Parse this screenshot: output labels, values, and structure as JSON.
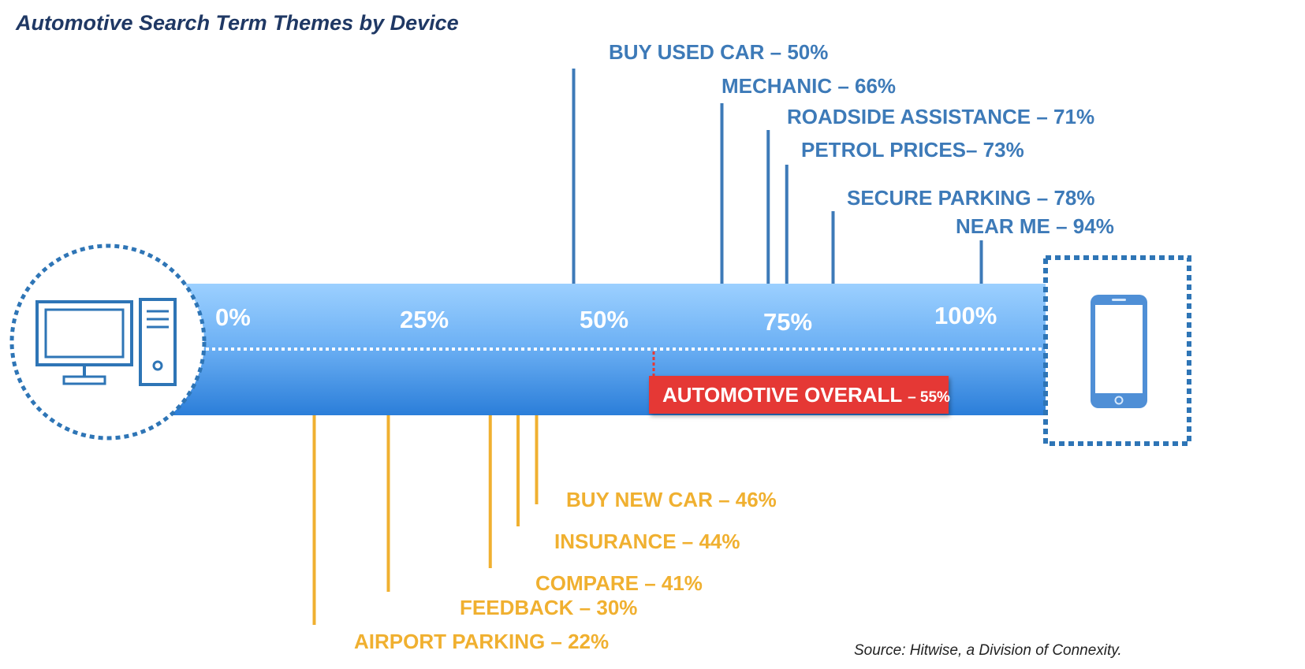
{
  "title": "Automotive Search Term Themes by Device",
  "source": "Source: Hitwise, a Division of Connexity.",
  "colors": {
    "mobile_terms": "#3d7ab8",
    "desktop_terms": "#f0b030",
    "overall_box": "#e53935",
    "bar_light": "#9cd0ff",
    "bar_dark": "#2b7ed9",
    "device_icon": "#2e75b6"
  },
  "icons": {
    "desktop": "desktop-computer-icon",
    "mobile": "smartphone-icon"
  },
  "chart_data": {
    "type": "timeline-axis",
    "title": "Automotive Search Term Themes by Device",
    "axis": {
      "label_positions": [
        0,
        25,
        50,
        75,
        100
      ],
      "tick_labels": [
        "0%",
        "25%",
        "50%",
        "75%",
        "100%"
      ],
      "range": [
        0,
        100
      ],
      "left_end": "desktop",
      "right_end": "mobile"
    },
    "overall": {
      "label": "AUTOMOTIVE OVERALL",
      "value_label": "– 55%",
      "value": 55
    },
    "series": [
      {
        "group": "mobile-leaning",
        "placement": "above",
        "points": [
          {
            "label": "BUY USED CAR – 50%",
            "value": 50
          },
          {
            "label": "MECHANIC – 66%",
            "value": 66
          },
          {
            "label": "ROADSIDE ASSISTANCE – 71%",
            "value": 71
          },
          {
            "label": "PETROL PRICES– 73%",
            "value": 73
          },
          {
            "label": "SECURE PARKING – 78%",
            "value": 78
          },
          {
            "label": "NEAR ME – 94%",
            "value": 94
          }
        ]
      },
      {
        "group": "desktop-leaning",
        "placement": "below",
        "points": [
          {
            "label": "BUY NEW CAR – 46%",
            "value": 46
          },
          {
            "label": "INSURANCE – 44%",
            "value": 44
          },
          {
            "label": "COMPARE – 41%",
            "value": 41
          },
          {
            "label": "FEEDBACK – 30%",
            "value": 30
          },
          {
            "label": "AIRPORT PARKING – 22%",
            "value": 22
          }
        ]
      }
    ]
  }
}
